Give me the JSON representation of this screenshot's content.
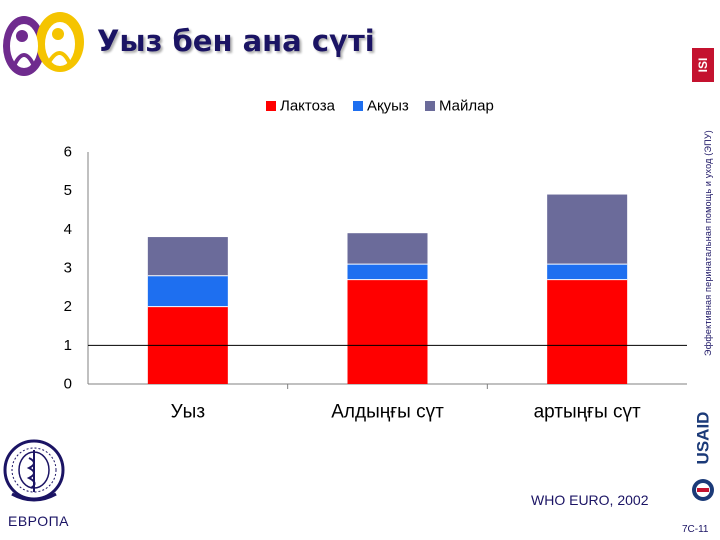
{
  "slide": {
    "title": "Уыз бен ана сүті",
    "vertical_text": "Эффективная перинатальная помощь и уход (ЭПУ)",
    "source": "WHO EURO, 2002",
    "slide_number": "7C-11",
    "org_label": "ЕВРОПА",
    "isi_text": "ISI",
    "usaid_text": "USAID"
  },
  "chart_data": {
    "type": "bar",
    "stacked": true,
    "categories": [
      "Уыз",
      "Алдыңғы сүт",
      "артыңғы сүт"
    ],
    "series": [
      {
        "name": "Лактоза",
        "color": "#ff0000",
        "values": [
          2.0,
          2.7,
          2.7
        ]
      },
      {
        "name": "Ақуыз",
        "color": "#1e6ff0",
        "values": [
          0.8,
          0.4,
          0.4
        ]
      },
      {
        "name": "Майлар",
        "color": "#6b6b9a",
        "values": [
          1.0,
          0.8,
          1.8
        ]
      }
    ],
    "ylim": [
      0,
      6
    ],
    "yticks": [
      0,
      1,
      2,
      3,
      4,
      5,
      6
    ],
    "reference_line": 1,
    "grid": false,
    "legend": "top"
  }
}
